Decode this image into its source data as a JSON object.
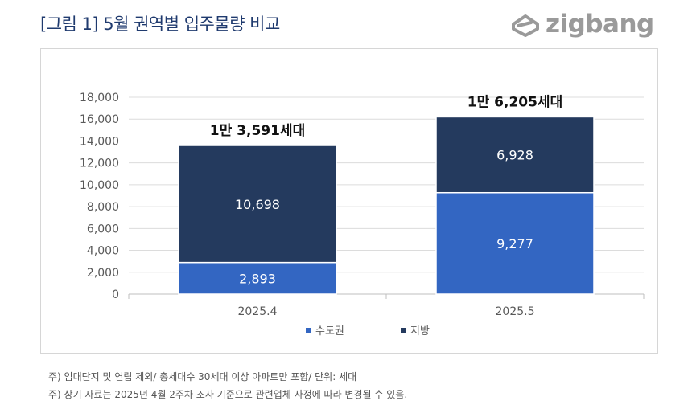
{
  "header": {
    "title": "[그림 1] 5월 권역별 입주물량 비교",
    "logo_text": "zigbang"
  },
  "chart_data": {
    "type": "bar",
    "stacked": true,
    "categories": [
      "2025.4",
      "2025.5"
    ],
    "series": [
      {
        "name": "수도권",
        "values": [
          2893,
          9277
        ],
        "labels": [
          "2,893",
          "9,277"
        ],
        "color": "#3366c2"
      },
      {
        "name": "지방",
        "values": [
          10698,
          6928
        ],
        "labels": [
          "10,698",
          "6,928"
        ],
        "color": "#243a5e"
      }
    ],
    "totals": [
      "1만 3,591세대",
      "1만 6,205세대"
    ],
    "ylim": [
      0,
      18000
    ],
    "yticks": [
      0,
      2000,
      4000,
      6000,
      8000,
      10000,
      12000,
      14000,
      16000,
      18000
    ],
    "ytick_labels": [
      "0",
      "2,000",
      "4,000",
      "6,000",
      "8,000",
      "10,000",
      "12,000",
      "14,000",
      "16,000",
      "18,000"
    ],
    "grid": true,
    "legend_position": "bottom-center"
  },
  "notes": [
    "주) 임대단지 및 연립 제외/ 총세대수 30세대 이상 아파트만 포함/ 단위: 세대",
    "주) 상기 자료는 2025년 4월 2주차 조사 기준으로 관련업체 사정에 따라 변경될 수 있음."
  ]
}
